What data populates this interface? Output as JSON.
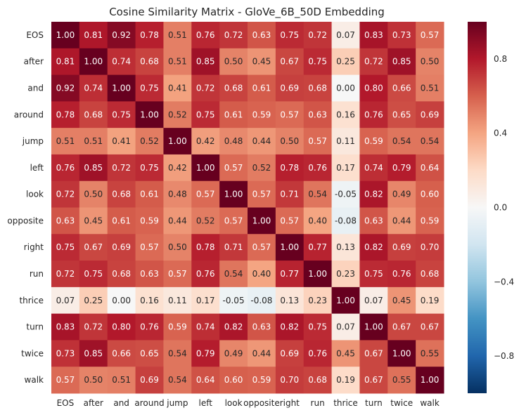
{
  "chart_data": {
    "type": "heatmap",
    "title": "Cosine Similarity Matrix - GloVe_6B_50D Embedding",
    "xlabel": "",
    "ylabel": "",
    "labels": [
      "EOS",
      "after",
      "and",
      "around",
      "jump",
      "left",
      "look",
      "opposite",
      "right",
      "run",
      "thrice",
      "turn",
      "twice",
      "walk"
    ],
    "values": [
      [
        1.0,
        0.81,
        0.92,
        0.78,
        0.51,
        0.76,
        0.72,
        0.63,
        0.75,
        0.72,
        0.07,
        0.83,
        0.73,
        0.57
      ],
      [
        0.81,
        1.0,
        0.74,
        0.68,
        0.51,
        0.85,
        0.5,
        0.45,
        0.67,
        0.75,
        0.25,
        0.72,
        0.85,
        0.5
      ],
      [
        0.92,
        0.74,
        1.0,
        0.75,
        0.41,
        0.72,
        0.68,
        0.61,
        0.69,
        0.68,
        0.0,
        0.8,
        0.66,
        0.51
      ],
      [
        0.78,
        0.68,
        0.75,
        1.0,
        0.52,
        0.75,
        0.61,
        0.59,
        0.57,
        0.63,
        0.16,
        0.76,
        0.65,
        0.69
      ],
      [
        0.51,
        0.51,
        0.41,
        0.52,
        1.0,
        0.42,
        0.48,
        0.44,
        0.5,
        0.57,
        0.11,
        0.59,
        0.54,
        0.54
      ],
      [
        0.76,
        0.85,
        0.72,
        0.75,
        0.42,
        1.0,
        0.57,
        0.52,
        0.78,
        0.76,
        0.17,
        0.74,
        0.79,
        0.64
      ],
      [
        0.72,
        0.5,
        0.68,
        0.61,
        0.48,
        0.57,
        1.0,
        0.57,
        0.71,
        0.54,
        -0.05,
        0.82,
        0.49,
        0.6
      ],
      [
        0.63,
        0.45,
        0.61,
        0.59,
        0.44,
        0.52,
        0.57,
        1.0,
        0.57,
        0.4,
        -0.08,
        0.63,
        0.44,
        0.59
      ],
      [
        0.75,
        0.67,
        0.69,
        0.57,
        0.5,
        0.78,
        0.71,
        0.57,
        1.0,
        0.77,
        0.13,
        0.82,
        0.69,
        0.7
      ],
      [
        0.72,
        0.75,
        0.68,
        0.63,
        0.57,
        0.76,
        0.54,
        0.4,
        0.77,
        1.0,
        0.23,
        0.75,
        0.76,
        0.68
      ],
      [
        0.07,
        0.25,
        0.0,
        0.16,
        0.11,
        0.17,
        -0.05,
        -0.08,
        0.13,
        0.23,
        1.0,
        0.07,
        0.45,
        0.19
      ],
      [
        0.83,
        0.72,
        0.8,
        0.76,
        0.59,
        0.74,
        0.82,
        0.63,
        0.82,
        0.75,
        0.07,
        1.0,
        0.67,
        0.67
      ],
      [
        0.73,
        0.85,
        0.66,
        0.65,
        0.54,
        0.79,
        0.49,
        0.44,
        0.69,
        0.76,
        0.45,
        0.67,
        1.0,
        0.55
      ],
      [
        0.57,
        0.5,
        0.51,
        0.69,
        0.54,
        0.64,
        0.6,
        0.59,
        0.7,
        0.68,
        0.19,
        0.67,
        0.55,
        1.0
      ]
    ],
    "value_format": "2 decimals",
    "colormap": "RdBu_r",
    "vmin": -1.0,
    "vmax": 1.0,
    "colorbar_ticks": [
      0.8,
      0.4,
      0.0,
      -0.4,
      -0.8
    ],
    "colorbar_tick_labels": [
      "0.8",
      "0.4",
      "0.0",
      "−0.4",
      "−0.8"
    ],
    "grid": false,
    "legend": "colorbar-right"
  }
}
